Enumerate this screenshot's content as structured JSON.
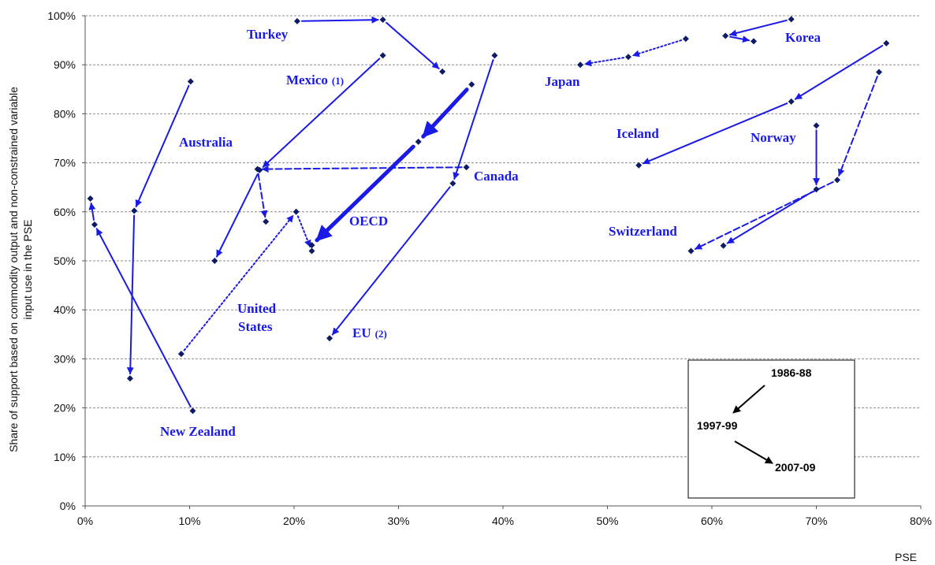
{
  "chart_data": {
    "type": "scatter",
    "xlabel": "PSE",
    "ylabel_lines": [
      "Share of support based on commodity output and non-constrained variable",
      "input use in the PSE"
    ],
    "xlim": [
      0,
      80
    ],
    "ylim": [
      0,
      100
    ],
    "x_ticks": [
      "0%",
      "10%",
      "20%",
      "30%",
      "40%",
      "50%",
      "60%",
      "70%",
      "80%"
    ],
    "y_ticks": [
      "0%",
      "10%",
      "20%",
      "30%",
      "40%",
      "50%",
      "60%",
      "70%",
      "80%",
      "90%",
      "100%"
    ],
    "grid": "horizontal dashed",
    "colors": {
      "series": "#1a1ae6",
      "legend": "#000000",
      "grid": "#8c8c8c"
    },
    "legend": {
      "placement": "bottom-right",
      "period_1": "1986-88",
      "period_2": "1997-99",
      "period_3": "2007-09"
    },
    "series": [
      {
        "name": "Turkey",
        "label_parts": [
          "Turkey"
        ],
        "points": [
          [
            20.3,
            98.9
          ],
          [
            28.5,
            99.2
          ],
          [
            34.2,
            88.6
          ]
        ],
        "style": "solid",
        "width": 2
      },
      {
        "name": "Mexico",
        "label_parts": [
          "Mexico",
          "(1)"
        ],
        "points": [
          [
            28.5,
            91.9
          ],
          [
            16.7,
            68.5
          ],
          [
            12.4,
            50.0
          ]
        ],
        "style": "solid",
        "width": 2
      },
      {
        "name": "Australia",
        "label_parts": [
          "Australia"
        ],
        "points": [
          [
            10.1,
            86.6
          ],
          [
            4.7,
            60.2
          ],
          [
            4.3,
            26.0
          ]
        ],
        "style": "solid",
        "width": 2
      },
      {
        "name": "New Zealand",
        "label_parts": [
          "New Zealand"
        ],
        "points": [
          [
            10.3,
            19.4
          ],
          [
            0.9,
            57.4
          ],
          [
            0.5,
            62.7
          ]
        ],
        "style": "solid",
        "width": 2
      },
      {
        "name": "Canada",
        "label_parts": [
          "Canada"
        ],
        "points": [
          [
            36.5,
            69.1
          ],
          [
            16.5,
            68.7
          ],
          [
            17.3,
            58.0
          ]
        ],
        "style": "dashed",
        "width": 2
      },
      {
        "name": "United States",
        "label_parts": [
          "United",
          "States"
        ],
        "points": [
          [
            9.2,
            31.0
          ],
          [
            20.2,
            60.0
          ],
          [
            21.7,
            52.0
          ]
        ],
        "style": "dotted",
        "width": 2
      },
      {
        "name": "OECD",
        "label_parts": [
          "OECD"
        ],
        "points": [
          [
            37.0,
            86.0
          ],
          [
            31.9,
            74.3
          ],
          [
            21.7,
            53.2
          ]
        ],
        "style": "solid",
        "width": 5
      },
      {
        "name": "EU",
        "label_parts": [
          "EU",
          "(2)"
        ],
        "points": [
          [
            39.2,
            91.9
          ],
          [
            35.2,
            65.8
          ],
          [
            23.4,
            34.2
          ]
        ],
        "style": "solid",
        "width": 2
      },
      {
        "name": "Japan",
        "label_parts": [
          "Japan"
        ],
        "points": [
          [
            57.5,
            95.3
          ],
          [
            52.0,
            91.6
          ],
          [
            47.4,
            90.0
          ]
        ],
        "style": "dotted",
        "width": 2
      },
      {
        "name": "Korea",
        "label_parts": [
          "Korea"
        ],
        "points": [
          [
            67.6,
            99.3
          ],
          [
            61.3,
            95.9
          ],
          [
            64.0,
            94.8
          ]
        ],
        "style": "solid",
        "width": 2
      },
      {
        "name": "Iceland",
        "label_parts": [
          "Iceland"
        ],
        "points": [
          [
            76.7,
            94.4
          ],
          [
            67.6,
            82.5
          ],
          [
            53.0,
            69.5
          ]
        ],
        "style": "solid",
        "width": 2
      },
      {
        "name": "Norway",
        "label_parts": [
          "Norway"
        ],
        "points": [
          [
            76.0,
            88.5
          ],
          [
            72.0,
            66.5
          ],
          [
            58.0,
            52.0
          ]
        ],
        "style": "dashed",
        "width": 2
      },
      {
        "name": "Switzerland",
        "label_parts": [
          "Switzerland"
        ],
        "points": [
          [
            70.0,
            77.6
          ],
          [
            70.0,
            64.6
          ],
          [
            61.1,
            53.1
          ]
        ],
        "style": "solid",
        "width": 2
      }
    ]
  }
}
